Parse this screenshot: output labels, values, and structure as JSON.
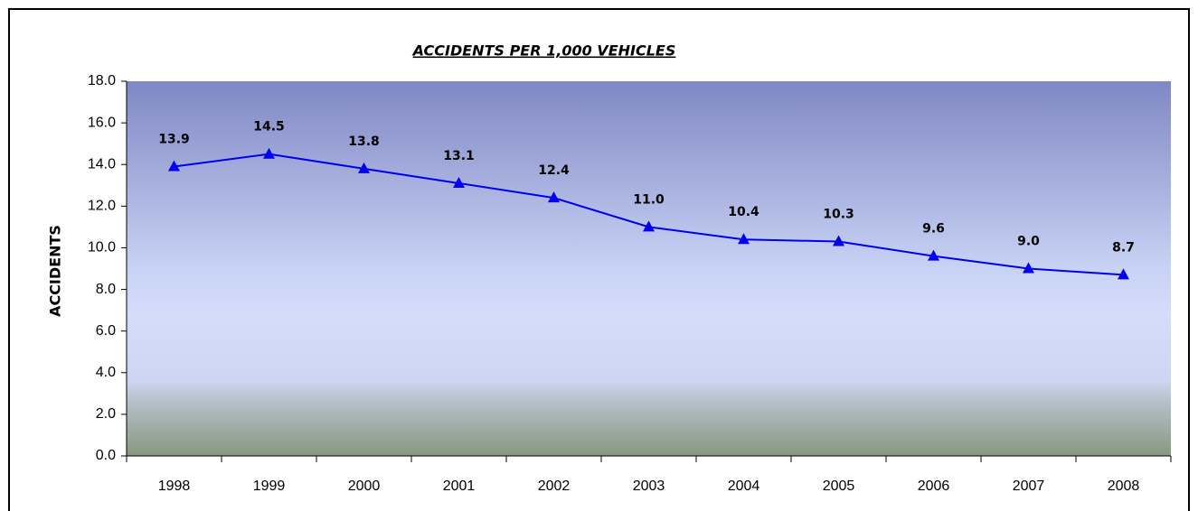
{
  "chart_data": {
    "type": "line",
    "title": "ACCIDENTS PER 1,000 VEHICLES",
    "y_label": "ACCIDENTS",
    "categories": [
      "1998",
      "1999",
      "2000",
      "2001",
      "2002",
      "2003",
      "2004",
      "2005",
      "2006",
      "2007",
      "2008"
    ],
    "series": [
      {
        "name": "ACCIDENTS",
        "color": "#0000ee",
        "values": [
          13.9,
          14.5,
          13.8,
          13.1,
          12.4,
          11.0,
          10.4,
          10.3,
          9.6,
          9.0,
          8.7
        ],
        "value_labels": [
          "13.9",
          "14.5",
          "13.8",
          "13.1",
          "12.4",
          "11.0",
          "10.4",
          "10.3",
          "9.6",
          "9.0",
          "8.7"
        ]
      }
    ],
    "ylim": [
      0,
      18
    ],
    "yticks": [
      {
        "value": 0,
        "label": "0.0"
      },
      {
        "value": 2,
        "label": "2.0"
      },
      {
        "value": 4,
        "label": "4.0"
      },
      {
        "value": 6,
        "label": "6.0"
      },
      {
        "value": 8,
        "label": "8.0"
      },
      {
        "value": 10,
        "label": "10.0"
      },
      {
        "value": 12,
        "label": "12.0"
      },
      {
        "value": 14,
        "label": "14.0"
      },
      {
        "value": 16,
        "label": "16.0"
      },
      {
        "value": 18,
        "label": "18.0"
      }
    ],
    "grid": false
  }
}
